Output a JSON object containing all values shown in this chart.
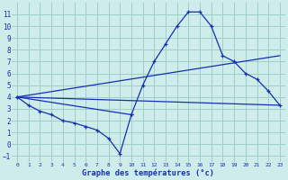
{
  "title": "Graphe des températures (°c)",
  "bg_color": "#ceecea",
  "grid_color": "#9ecfca",
  "line_color": "#1530b0",
  "xlim": [
    -0.5,
    23.5
  ],
  "ylim": [
    -1.5,
    12
  ],
  "xticks": [
    0,
    1,
    2,
    3,
    4,
    5,
    6,
    7,
    8,
    9,
    10,
    11,
    12,
    13,
    14,
    15,
    16,
    17,
    18,
    19,
    20,
    21,
    22,
    23
  ],
  "yticks": [
    -1,
    0,
    1,
    2,
    3,
    4,
    5,
    6,
    7,
    8,
    9,
    10,
    11
  ],
  "series": [
    {
      "x": [
        0,
        1,
        2,
        3,
        4,
        5,
        6,
        7,
        8,
        9,
        10
      ],
      "y": [
        4,
        3.3,
        2.8,
        2.5,
        2.0,
        1.8,
        1.5,
        1.2,
        0.5,
        -0.8,
        2.5
      ],
      "marker": true
    },
    {
      "x": [
        0,
        10,
        11,
        12,
        13,
        14,
        15,
        16,
        17,
        18,
        19,
        20,
        21,
        22,
        23
      ],
      "y": [
        4,
        2.5,
        5.0,
        7.0,
        8.5,
        10.0,
        11.2,
        11.2,
        10.0,
        7.5,
        7.0,
        6.0,
        5.5,
        4.5,
        3.3
      ],
      "marker": true
    },
    {
      "x": [
        0,
        23
      ],
      "y": [
        4,
        7.5
      ],
      "marker": false
    },
    {
      "x": [
        0,
        23
      ],
      "y": [
        4,
        3.3
      ],
      "marker": false
    }
  ]
}
